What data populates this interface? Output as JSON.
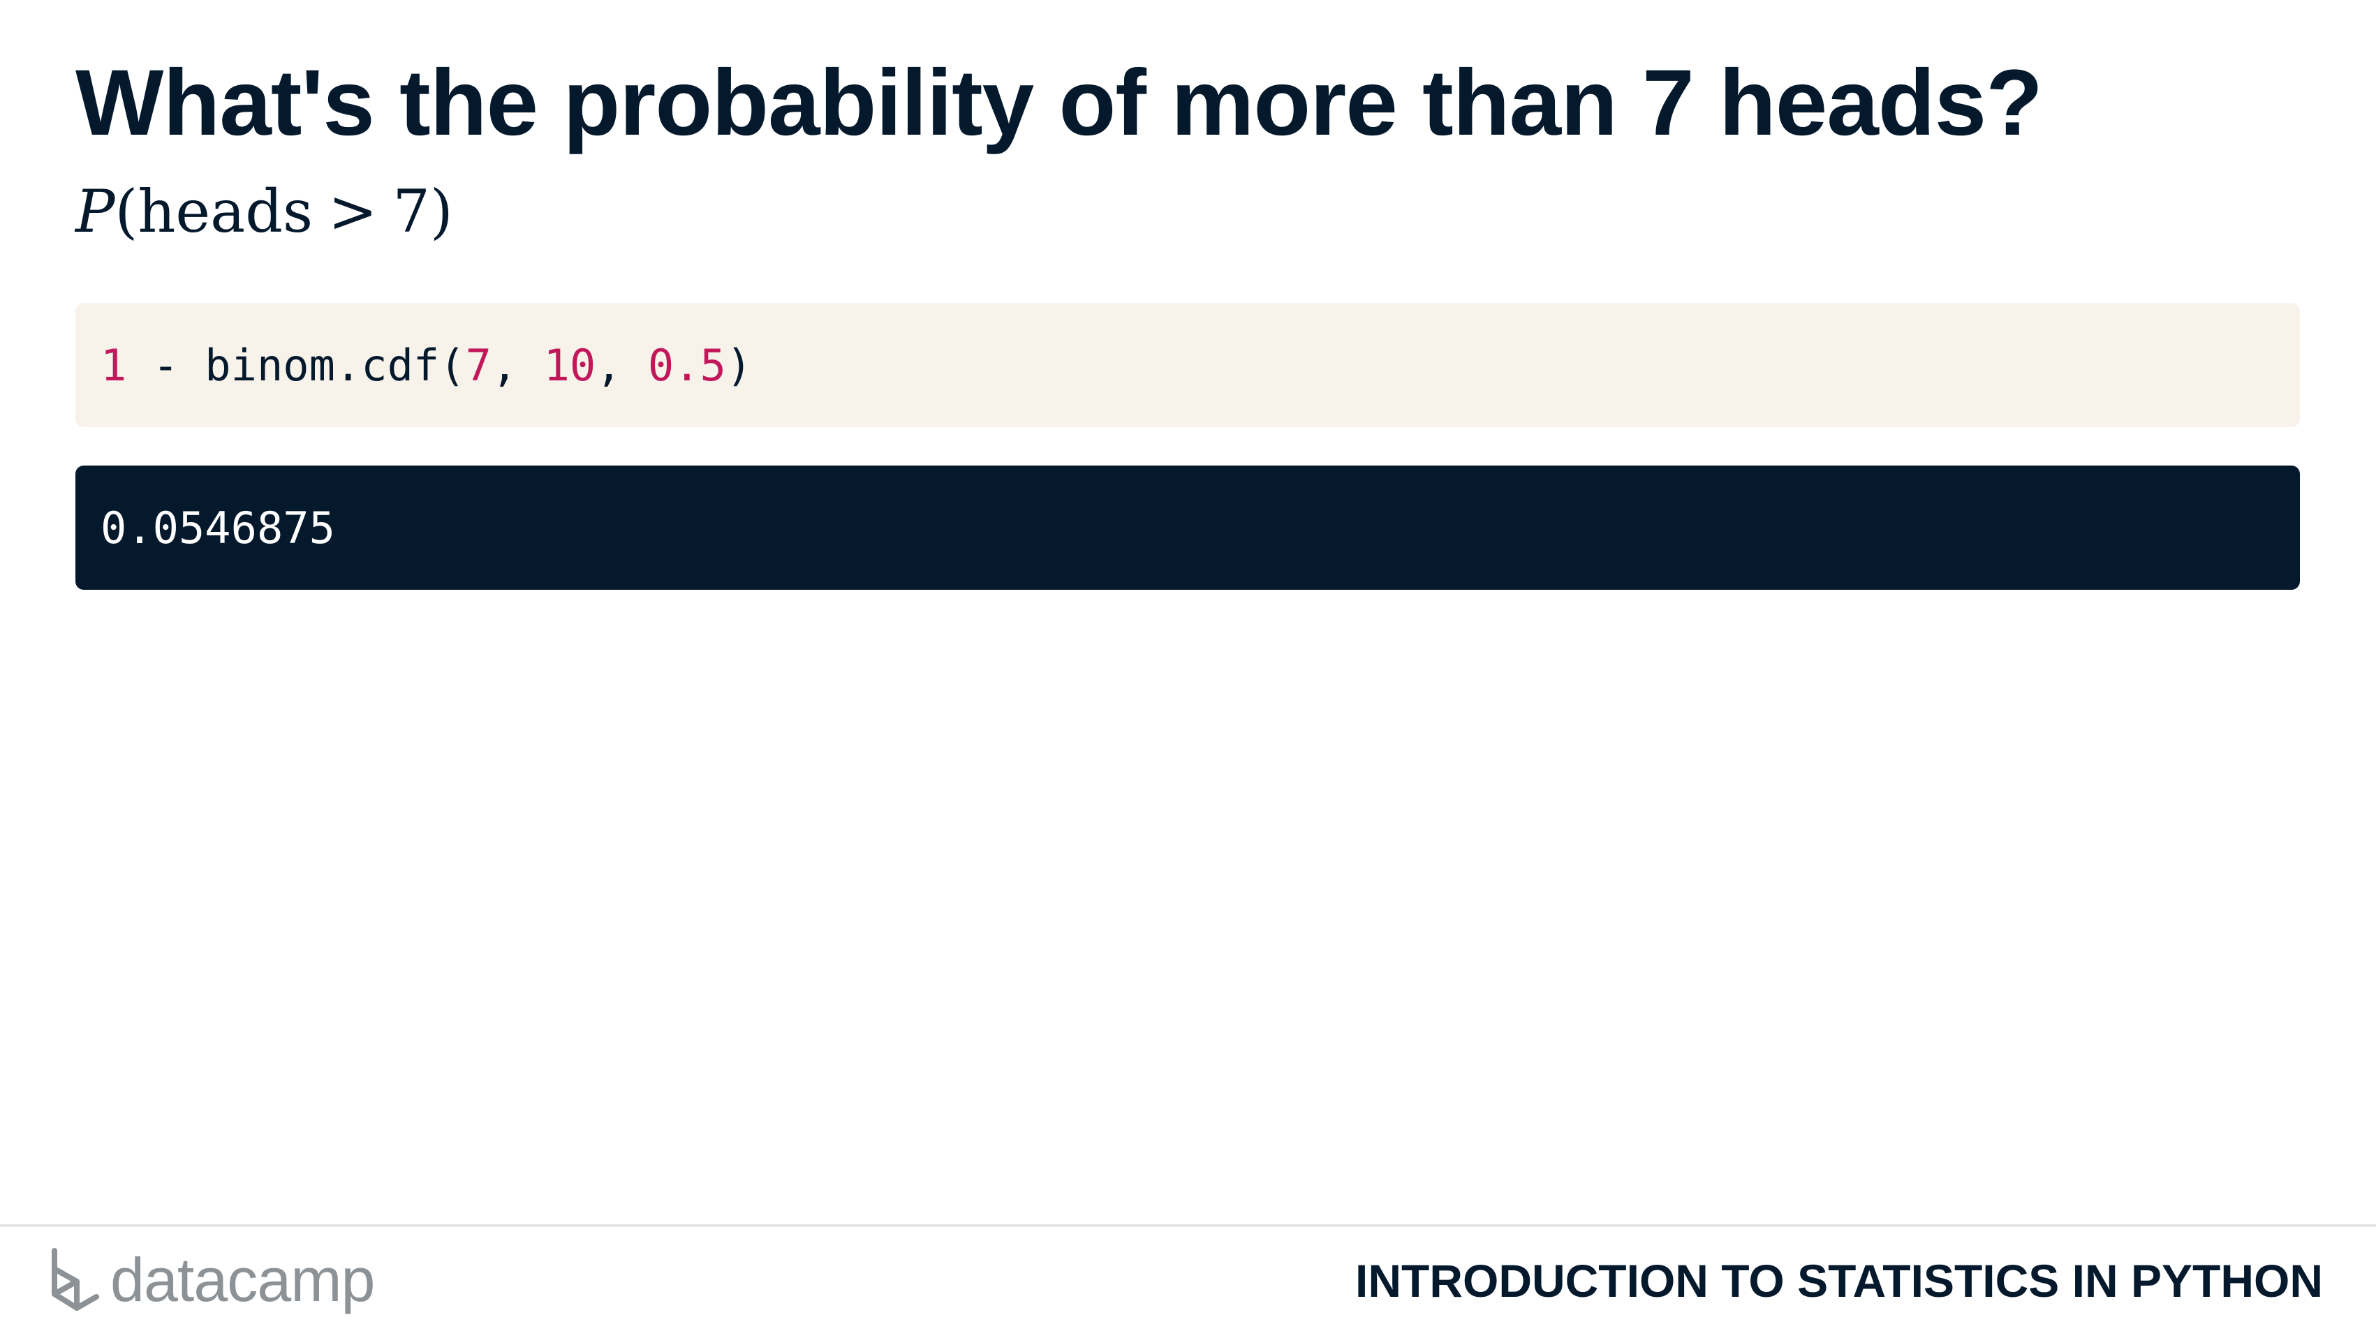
{
  "slide": {
    "title": "What's the probability of more than 7 heads?"
  },
  "formula": {
    "fn": "P",
    "open": "(",
    "word": "heads",
    "operator": ">",
    "value": "7",
    "close": ")"
  },
  "code": {
    "t1": "1",
    "t2": " - binom.cdf(",
    "t3": "7",
    "t4": ", ",
    "t5": "10",
    "t6": ", ",
    "t7": "0.5",
    "t8": ")"
  },
  "output": {
    "value": "0.0546875"
  },
  "footer": {
    "logo_text": "datacamp",
    "course_title": "INTRODUCTION TO STATISTICS IN PYTHON"
  },
  "colors": {
    "navy": "#05192d",
    "code_bg": "#f7f3eb",
    "number": "#c2185b",
    "logo_gray": "#8c9296"
  },
  "icons": {
    "logo": "datacamp-logo-icon"
  }
}
